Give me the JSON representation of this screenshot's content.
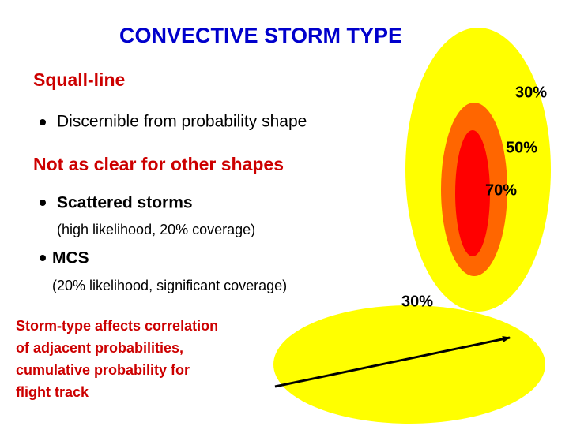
{
  "title": "CONVECTIVE STORM TYPE",
  "sections": [
    {
      "heading": "Squall-line",
      "bullets": [
        {
          "text": "Discernible from probability shape"
        }
      ]
    },
    {
      "heading": "Not as clear for other shapes",
      "bullets": [
        {
          "text": "Scattered storms",
          "detail": "(high likelihood, 20% coverage)"
        },
        {
          "text": "MCS",
          "detail": "(20% likelihood, significant coverage)"
        }
      ]
    }
  ],
  "note": [
    "Storm-type affects correlation",
    "of adjacent probabilities,",
    "cumulative probability for",
    "flight track"
  ],
  "diagram": {
    "squall_labels": [
      "30%",
      "50%",
      "70%"
    ],
    "mcs_label": "30%"
  }
}
